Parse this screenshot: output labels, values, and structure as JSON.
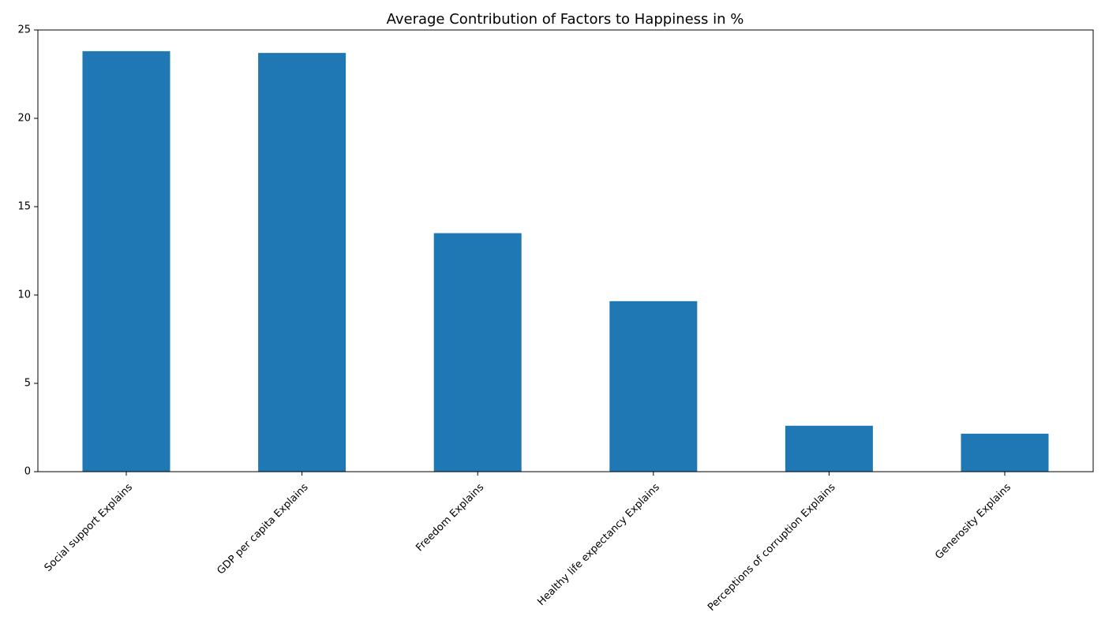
{
  "colors": {
    "bar": "#1f77b4",
    "axis": "#000000",
    "background": "#ffffff"
  },
  "chart_data": {
    "type": "bar",
    "title": "Average Contribution of Factors to Happiness in %",
    "xlabel": "",
    "ylabel": "",
    "categories": [
      "Social support Explains",
      "GDP per capita Explains",
      "Freedom Explains",
      "Healthy life expectancy Explains",
      "Perceptions of corruption Explains",
      "Generosity Explains"
    ],
    "values": [
      23.8,
      23.7,
      13.5,
      9.65,
      2.6,
      2.15
    ],
    "ylim": [
      0,
      25
    ],
    "yticks": [
      0,
      5,
      10,
      15,
      20,
      25
    ],
    "grid": false,
    "legend": "none"
  }
}
